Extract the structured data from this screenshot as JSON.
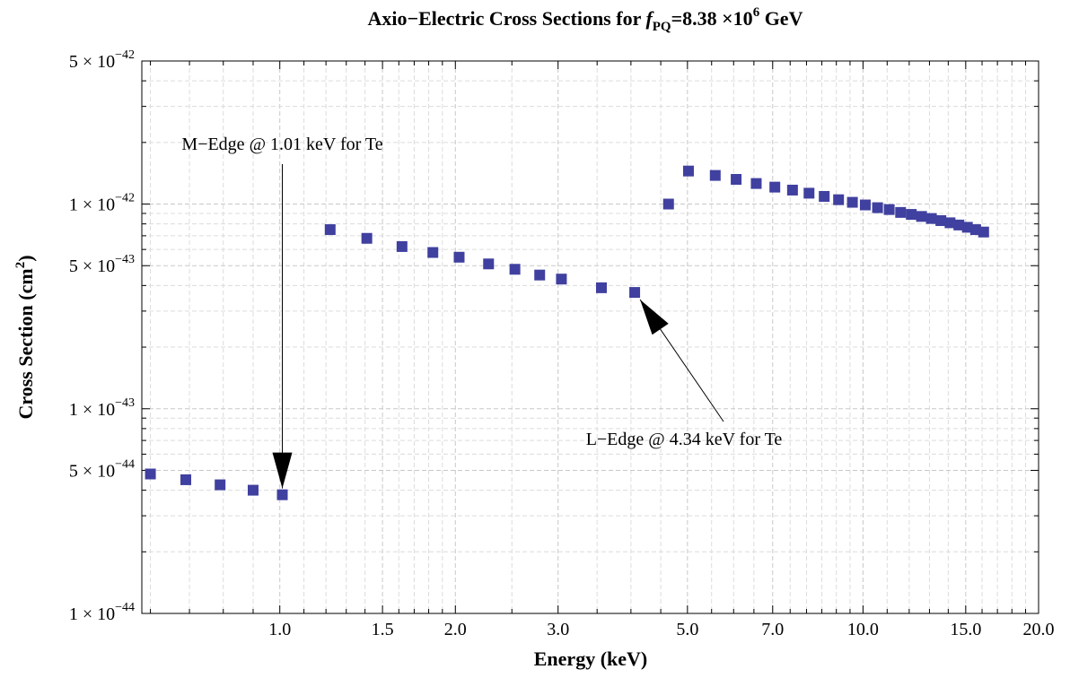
{
  "chart_data": {
    "type": "scatter",
    "title": {
      "prefix": "Axio−Electric Cross Sections for ",
      "f_symbol": "f",
      "f_subscript": "PQ",
      "value_mantissa": "=8.38 ×10",
      "value_exponent": "6",
      "value_unit": " GeV"
    },
    "xlabel": "Energy (keV)",
    "ylabel": {
      "text": "Cross Section (cm",
      "superscript": "2",
      "suffix": ")"
    },
    "x_scale": "log",
    "y_scale": "log",
    "xlim": [
      0.58,
      20.0
    ],
    "ylim": [
      1e-44,
      5e-42
    ],
    "grid": true,
    "legend": "none",
    "marker_color": "#4040a0",
    "marker_shape": "square",
    "x_ticks": [
      {
        "value": 1.0,
        "label": "1.0"
      },
      {
        "value": 1.5,
        "label": "1.5"
      },
      {
        "value": 2.0,
        "label": "2.0"
      },
      {
        "value": 3.0,
        "label": "3.0"
      },
      {
        "value": 5.0,
        "label": "5.0"
      },
      {
        "value": 7.0,
        "label": "7.0"
      },
      {
        "value": 10.0,
        "label": "10.0"
      },
      {
        "value": 15.0,
        "label": "15.0"
      },
      {
        "value": 20.0,
        "label": "20.0"
      }
    ],
    "y_ticks": [
      {
        "value": 1e-44,
        "mantissa": "1",
        "exponent": "−44"
      },
      {
        "value": 5e-44,
        "mantissa": "5",
        "exponent": "−44"
      },
      {
        "value": 1e-43,
        "mantissa": "1",
        "exponent": "−43"
      },
      {
        "value": 5e-43,
        "mantissa": "5",
        "exponent": "−43"
      },
      {
        "value": 1e-42,
        "mantissa": "1",
        "exponent": "−42"
      },
      {
        "value": 5e-42,
        "mantissa": "5",
        "exponent": "−42"
      }
    ],
    "x_minor_ticks": [
      0.6,
      0.7,
      0.8,
      0.9,
      1.1,
      1.2,
      1.3,
      1.4,
      1.6,
      1.7,
      1.8,
      1.9,
      2.5,
      3.5,
      4.0,
      4.5,
      5.5,
      6.0,
      6.5,
      7.5,
      8.0,
      8.5,
      9.0,
      9.5,
      11.0,
      12.0,
      13.0,
      14.0,
      16.0,
      17.0,
      18.0,
      19.0
    ],
    "y_minor_ticks": [
      2e-44,
      3e-44,
      4e-44,
      6e-44,
      7e-44,
      8e-44,
      9e-44,
      2e-43,
      3e-43,
      4e-43,
      6e-43,
      7e-43,
      8e-43,
      9e-43,
      2e-42,
      3e-42,
      4e-42
    ],
    "series": [
      {
        "x": [
          0.6,
          0.69,
          0.79,
          0.9,
          1.01,
          1.22,
          1.41,
          1.62,
          1.83,
          2.03,
          2.28,
          2.53,
          2.79,
          3.04,
          3.56,
          4.06,
          4.64,
          5.02,
          5.58,
          6.06,
          6.56,
          7.06,
          7.57,
          8.08,
          8.58,
          9.08,
          9.59,
          10.09,
          10.59,
          11.09,
          11.6,
          12.1,
          12.6,
          13.1,
          13.6,
          14.1,
          14.6,
          15.1,
          15.6,
          16.1
        ],
        "y": [
          4.8e-44,
          4.5e-44,
          4.25e-44,
          4e-44,
          3.8e-44,
          7.5e-43,
          6.8e-43,
          6.2e-43,
          5.8e-43,
          5.5e-43,
          5.1e-43,
          4.8e-43,
          4.5e-43,
          4.3e-43,
          3.9e-43,
          3.7e-43,
          1e-42,
          1.45e-42,
          1.38e-42,
          1.32e-42,
          1.26e-42,
          1.21e-42,
          1.17e-42,
          1.13e-42,
          1.09e-42,
          1.05e-42,
          1.02e-42,
          9.9e-43,
          9.6e-43,
          9.4e-43,
          9.1e-43,
          8.9e-43,
          8.7e-43,
          8.5e-43,
          8.3e-43,
          8.1e-43,
          7.9e-43,
          7.7e-43,
          7.5e-43,
          7.3e-43
        ]
      }
    ],
    "annotations": [
      {
        "text": "M−Edge @ 1.01 keV for Te",
        "target_x": 1.01,
        "target_y": 3.8e-44
      },
      {
        "text": "L−Edge @ 4.34 keV for Te",
        "target_x": 4.06,
        "target_y": 3.7e-43
      }
    ]
  }
}
